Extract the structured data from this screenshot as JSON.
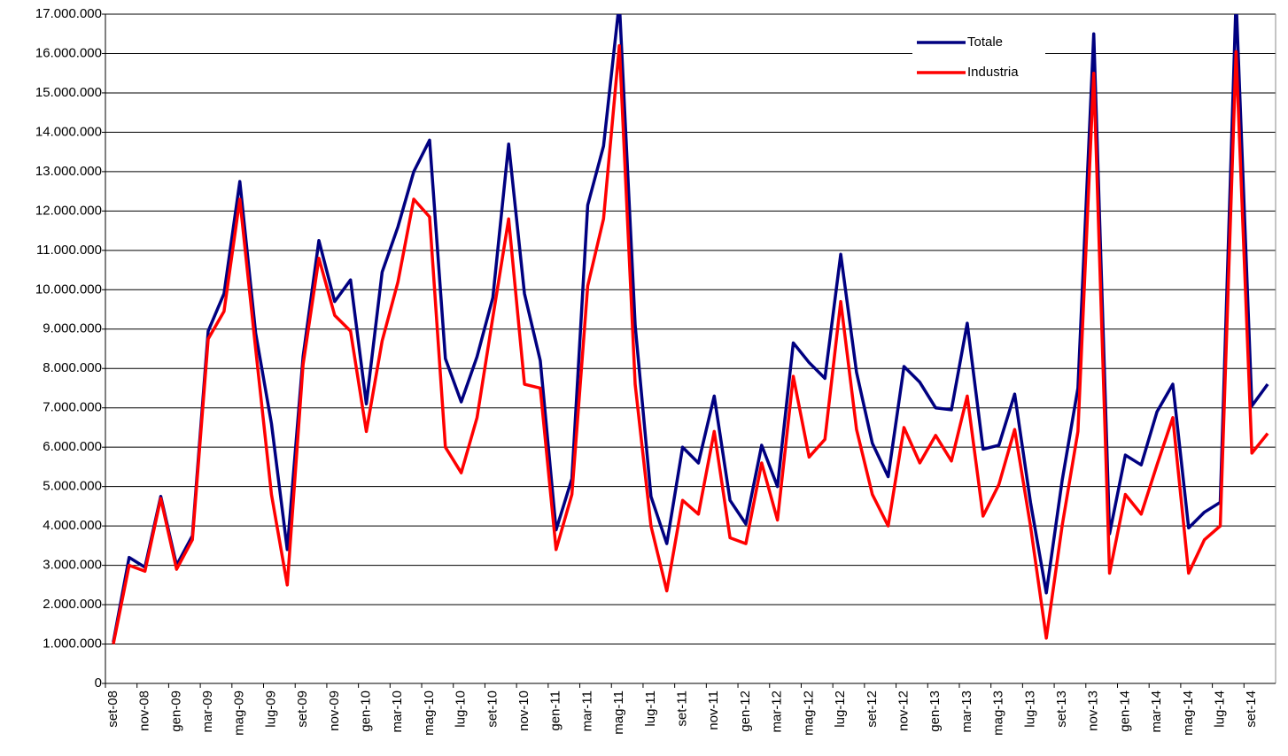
{
  "chart_data": {
    "type": "line",
    "categories": [
      "set-08",
      null,
      "nov-08",
      null,
      "gen-09",
      null,
      "mar-09",
      null,
      "mag-09",
      null,
      "lug-09",
      null,
      "set-09",
      null,
      "nov-09",
      null,
      "gen-10",
      null,
      "mar-10",
      null,
      "mag-10",
      null,
      "lug-10",
      null,
      "set-10",
      null,
      "nov-10",
      null,
      "gen-11",
      null,
      "mar-11",
      null,
      "mag-11",
      null,
      "lug-11",
      null,
      "set-11",
      null,
      "nov-11",
      null,
      "gen-12",
      null,
      "mar-12",
      null,
      "mag-12",
      null,
      "lug-12",
      null,
      "set-12",
      null,
      "nov-12",
      null,
      "gen-13",
      null,
      "mar-13",
      null,
      "mag-13",
      null,
      "lug-13",
      null,
      "set-13",
      null,
      "nov-13",
      null,
      "gen-14",
      null,
      "mar-14",
      null,
      "mag-14",
      null,
      "lug-14",
      null,
      "set-14",
      null
    ],
    "series": [
      {
        "name": "Totale",
        "color": "#000080",
        "values": [
          1050000,
          3200000,
          2950000,
          4750000,
          3000000,
          3750000,
          8950000,
          9900000,
          12750000,
          8900000,
          6600000,
          3400000,
          8300000,
          11250000,
          9700000,
          10250000,
          7100000,
          10450000,
          11600000,
          13000000,
          13800000,
          8250000,
          7150000,
          8300000,
          9800000,
          13700000,
          9900000,
          8200000,
          3900000,
          5200000,
          12150000,
          13650000,
          17300000,
          9100000,
          4750000,
          3550000,
          6000000,
          5600000,
          7300000,
          4650000,
          4050000,
          6050000,
          5000000,
          8650000,
          8150000,
          7750000,
          10900000,
          7900000,
          6100000,
          5250000,
          8050000,
          7650000,
          7000000,
          6950000,
          9150000,
          5950000,
          6050000,
          7350000,
          4600000,
          2300000,
          5150000,
          7500000,
          16500000,
          3800000,
          5800000,
          5550000,
          6900000,
          7600000,
          3950000,
          4350000,
          4600000,
          17400000,
          7050000,
          7600000
        ]
      },
      {
        "name": "Industria",
        "color": "#ff0000",
        "values": [
          1000000,
          3000000,
          2850000,
          4700000,
          2900000,
          3650000,
          8750000,
          9450000,
          12300000,
          8500000,
          4800000,
          2500000,
          8100000,
          10800000,
          9350000,
          8950000,
          6400000,
          8700000,
          10200000,
          12300000,
          11850000,
          6000000,
          5350000,
          6750000,
          9300000,
          11800000,
          7600000,
          7500000,
          3400000,
          4800000,
          10100000,
          11800000,
          16200000,
          7600000,
          4000000,
          2350000,
          4650000,
          4300000,
          6400000,
          3700000,
          3550000,
          5600000,
          4150000,
          7800000,
          5750000,
          6200000,
          9700000,
          6450000,
          4800000,
          4000000,
          6500000,
          5600000,
          6300000,
          5650000,
          7300000,
          4250000,
          5050000,
          6450000,
          4000000,
          1150000,
          4000000,
          6400000,
          15500000,
          2800000,
          4800000,
          4300000,
          5550000,
          6750000,
          2800000,
          3650000,
          4000000,
          16050000,
          5850000,
          6350000
        ]
      }
    ],
    "ylim": [
      0,
      17000000
    ],
    "yticks": [
      0,
      {
        "value": 1000000,
        "label": "1.000.000"
      },
      {
        "value": 2000000,
        "label": "2.000.000"
      },
      {
        "value": 3000000,
        "label": "3.000.000"
      },
      {
        "value": 4000000,
        "label": "4.000.000"
      },
      {
        "value": 5000000,
        "label": "5.000.000"
      },
      {
        "value": 6000000,
        "label": "6.000.000"
      },
      {
        "value": 7000000,
        "label": "7.000.000"
      },
      {
        "value": 8000000,
        "label": "8.000.000"
      },
      {
        "value": 9000000,
        "label": "9.000.000"
      },
      {
        "value": 10000000,
        "label": "10.000.000"
      },
      {
        "value": 11000000,
        "label": "11.000.000"
      },
      {
        "value": 12000000,
        "label": "12.000.000"
      },
      {
        "value": 13000000,
        "label": "13.000.000"
      },
      {
        "value": 14000000,
        "label": "14.000.000"
      },
      {
        "value": 15000000,
        "label": "15.000.000"
      },
      {
        "value": 16000000,
        "label": "16.000.000"
      },
      {
        "value": 17000000,
        "label": "17.000.000"
      }
    ],
    "grid": true,
    "legend": "top-right"
  }
}
